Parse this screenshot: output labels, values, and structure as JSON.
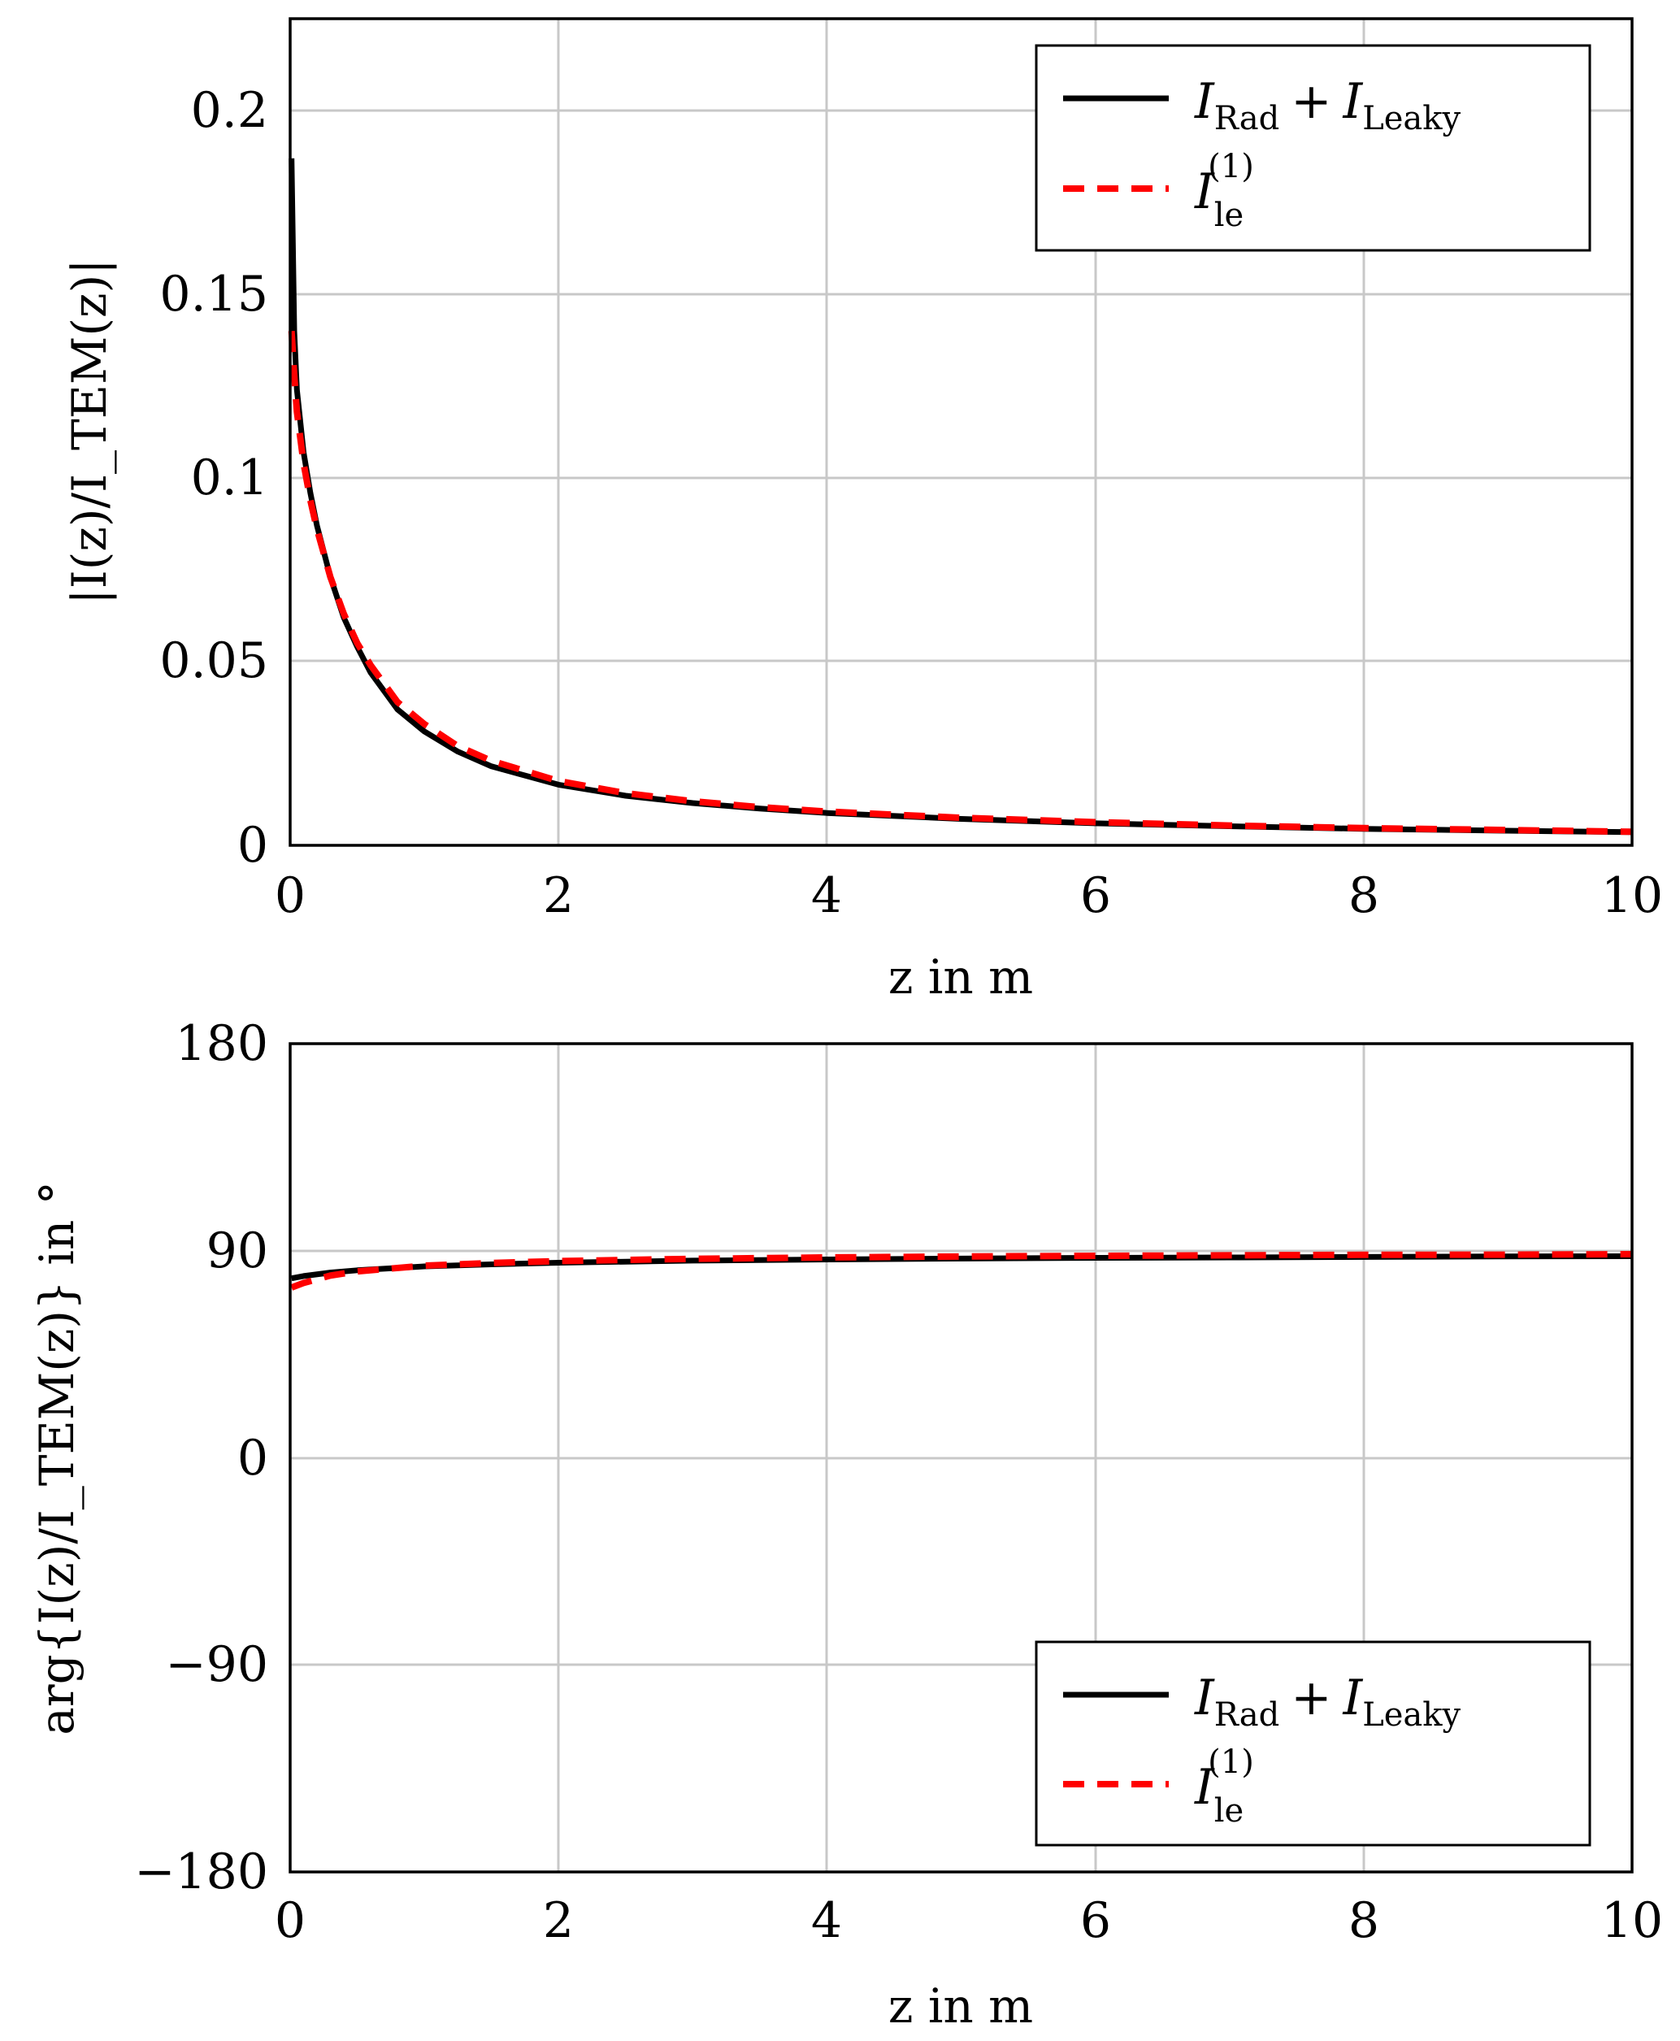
{
  "chart_data": [
    {
      "type": "line",
      "xlabel": "z in m",
      "ylabel": "|I(z)/I_TEM(z)|",
      "xlim": [
        0,
        10
      ],
      "ylim": [
        0,
        0.225
      ],
      "grid": true,
      "legend_position": "top-right",
      "x_ticks": [
        "0",
        "2",
        "4",
        "6",
        "8",
        "10"
      ],
      "y_ticks": [
        "0",
        "0.05",
        "0.1",
        "0.15",
        "0.2"
      ],
      "series": [
        {
          "name": "I_Rad + I_Leaky",
          "color": "#000000",
          "style": "solid",
          "x": [
            0.01,
            0.03,
            0.05,
            0.1,
            0.15,
            0.2,
            0.3,
            0.4,
            0.5,
            0.6,
            0.8,
            1.0,
            1.25,
            1.5,
            2.0,
            2.5,
            3.0,
            3.5,
            4.0,
            5.0,
            6.0,
            7.0,
            8.0,
            9.0,
            10.0
          ],
          "values": [
            0.187,
            0.14,
            0.124,
            0.107,
            0.096,
            0.087,
            0.073,
            0.062,
            0.054,
            0.047,
            0.037,
            0.031,
            0.0255,
            0.0215,
            0.0165,
            0.0135,
            0.0115,
            0.01,
            0.0088,
            0.0072,
            0.006,
            0.0052,
            0.0045,
            0.004,
            0.0036
          ]
        },
        {
          "name": "I_le^(1)",
          "color": "#ff0000",
          "style": "dashed",
          "x": [
            0.01,
            0.03,
            0.05,
            0.1,
            0.15,
            0.2,
            0.3,
            0.4,
            0.5,
            0.6,
            0.8,
            1.0,
            1.25,
            1.5,
            2.0,
            2.5,
            3.0,
            3.5,
            4.0,
            5.0,
            6.0,
            7.0,
            8.0,
            9.0,
            10.0
          ],
          "values": [
            0.14,
            0.128,
            0.118,
            0.104,
            0.094,
            0.086,
            0.073,
            0.063,
            0.055,
            0.049,
            0.039,
            0.033,
            0.027,
            0.023,
            0.0175,
            0.0142,
            0.012,
            0.0104,
            0.0092,
            0.0075,
            0.0063,
            0.0054,
            0.0047,
            0.0042,
            0.0037
          ]
        }
      ]
    },
    {
      "type": "line",
      "xlabel": "z in m",
      "ylabel": "arg{I(z)/I_TEM(z)} in °",
      "xlim": [
        0,
        10
      ],
      "ylim": [
        -180,
        180
      ],
      "grid": true,
      "legend_position": "bottom-right",
      "x_ticks": [
        "0",
        "2",
        "4",
        "6",
        "8",
        "10"
      ],
      "y_ticks": [
        "−180",
        "−90",
        "0",
        "90",
        "180"
      ],
      "series": [
        {
          "name": "I_Rad + I_Leaky",
          "color": "#000000",
          "style": "solid",
          "x": [
            0.01,
            0.1,
            0.3,
            0.5,
            1.0,
            1.5,
            2.0,
            3.0,
            4.0,
            5.0,
            6.0,
            7.0,
            8.0,
            9.0,
            10.0
          ],
          "values": [
            78.0,
            79.0,
            80.5,
            81.5,
            83.2,
            84.1,
            84.8,
            85.7,
            86.2,
            86.6,
            86.9,
            87.1,
            87.3,
            87.5,
            87.6
          ]
        },
        {
          "name": "I_le^(1)",
          "color": "#ff0000",
          "style": "dashed",
          "x": [
            0.01,
            0.1,
            0.3,
            0.5,
            1.0,
            1.5,
            2.0,
            3.0,
            4.0,
            5.0,
            6.0,
            7.0,
            8.0,
            9.0,
            10.0
          ],
          "values": [
            74.0,
            76.0,
            79.2,
            81.0,
            83.5,
            84.7,
            85.5,
            86.5,
            87.1,
            87.5,
            87.8,
            88.0,
            88.2,
            88.3,
            88.5
          ]
        }
      ]
    }
  ],
  "legend_entries": {
    "rad_leaky": {
      "I1": "I",
      "sub1": "Rad",
      "plus": "+",
      "I2": "I",
      "sub2": "Leaky"
    },
    "le1": {
      "I": "I",
      "sub": "le",
      "sup": "(1)"
    }
  }
}
